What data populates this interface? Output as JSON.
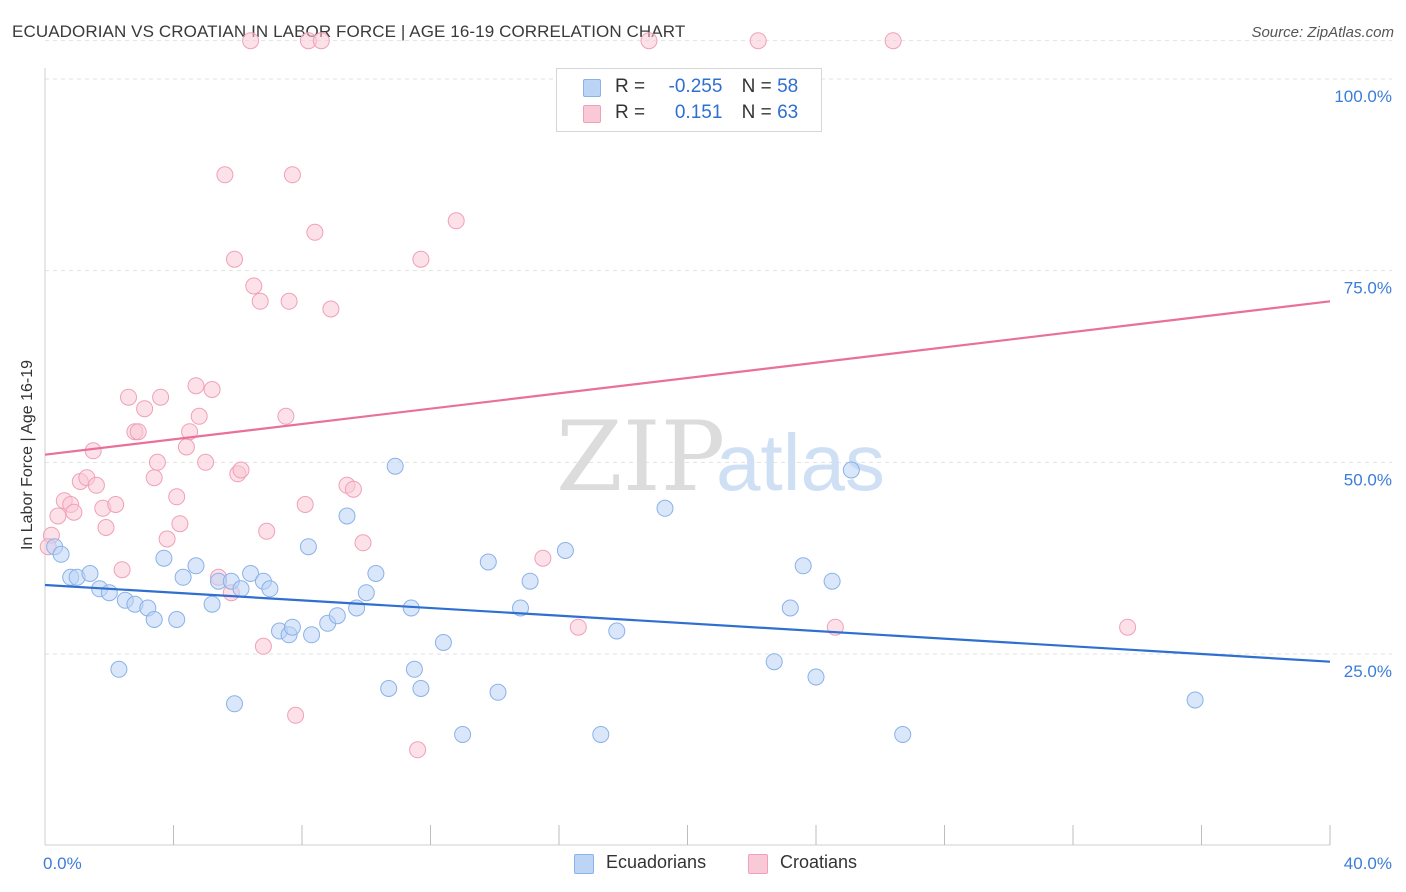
{
  "title": "ECUADORIAN VS CROATIAN IN LABOR FORCE | AGE 16-19 CORRELATION CHART",
  "source": "Source: ZipAtlas.com",
  "watermark": {
    "zip": "ZIP",
    "atlas": "atlas"
  },
  "colors": {
    "blue_fill": "#bcd4f5",
    "blue_stroke": "#8ab2e8",
    "blue_line": "#2f6fd0",
    "pink_fill": "#f9c9d7",
    "pink_stroke": "#f0a0b8",
    "pink_line": "#e8709a",
    "axis_text": "#3b7dd8"
  },
  "legend": {
    "rows": [
      {
        "r_label": "R =",
        "r_value": "-0.255",
        "n_label": "N =",
        "n_value": "58"
      },
      {
        "r_label": "R =",
        "r_value": "0.151",
        "n_label": "N =",
        "n_value": "63"
      }
    ]
  },
  "bottom_legend": {
    "items": [
      "Ecuadorians",
      "Croatians"
    ]
  },
  "chart_data": {
    "type": "scatter",
    "title": "ECUADORIAN VS CROATIAN IN LABOR FORCE | AGE 16-19 CORRELATION CHART",
    "ylabel": "In Labor Force | Age 16-19",
    "xlabel": "",
    "xlim": [
      0,
      40
    ],
    "ylim": [
      0,
      105
    ],
    "x_ticks": [
      {
        "value": 0,
        "label": "0.0%"
      },
      {
        "value": 40,
        "label": "40.0%"
      }
    ],
    "y_ticks": [
      {
        "value": 25,
        "label": "25.0%"
      },
      {
        "value": 50,
        "label": "50.0%"
      },
      {
        "value": 75,
        "label": "75.0%"
      },
      {
        "value": 100,
        "label": "100.0%"
      }
    ],
    "grid": true,
    "series": [
      {
        "name": "Ecuadorians",
        "color": "#8ab2e8",
        "trend": {
          "x": [
            0,
            40
          ],
          "y": [
            34,
            24
          ]
        },
        "points": [
          [
            0.3,
            39
          ],
          [
            0.5,
            38
          ],
          [
            0.8,
            35
          ],
          [
            1.0,
            35
          ],
          [
            1.4,
            35.5
          ],
          [
            1.7,
            33.5
          ],
          [
            2.0,
            33
          ],
          [
            2.3,
            23
          ],
          [
            2.5,
            32
          ],
          [
            2.8,
            31.5
          ],
          [
            3.2,
            31
          ],
          [
            3.4,
            29.5
          ],
          [
            3.7,
            37.5
          ],
          [
            4.1,
            29.5
          ],
          [
            4.3,
            35
          ],
          [
            4.7,
            36.5
          ],
          [
            5.2,
            31.5
          ],
          [
            5.4,
            34.5
          ],
          [
            5.8,
            34.5
          ],
          [
            5.9,
            18.5
          ],
          [
            6.1,
            33.5
          ],
          [
            6.4,
            35.5
          ],
          [
            6.8,
            34.5
          ],
          [
            7.0,
            33.5
          ],
          [
            7.3,
            28
          ],
          [
            7.6,
            27.5
          ],
          [
            7.7,
            28.5
          ],
          [
            8.2,
            39
          ],
          [
            8.3,
            27.5
          ],
          [
            8.8,
            29
          ],
          [
            9.1,
            30
          ],
          [
            9.4,
            43
          ],
          [
            9.7,
            31
          ],
          [
            10.0,
            33
          ],
          [
            10.3,
            35.5
          ],
          [
            10.7,
            20.5
          ],
          [
            10.9,
            49.5
          ],
          [
            11.4,
            31
          ],
          [
            11.5,
            23
          ],
          [
            11.7,
            20.5
          ],
          [
            12.4,
            26.5
          ],
          [
            13.0,
            14.5
          ],
          [
            13.8,
            37
          ],
          [
            14.1,
            20
          ],
          [
            14.8,
            31
          ],
          [
            15.1,
            34.5
          ],
          [
            16.2,
            38.5
          ],
          [
            17.3,
            14.5
          ],
          [
            17.8,
            28
          ],
          [
            19.3,
            44
          ],
          [
            22.7,
            24
          ],
          [
            23.2,
            31
          ],
          [
            23.6,
            36.5
          ],
          [
            24.0,
            22
          ],
          [
            24.5,
            34.5
          ],
          [
            25.1,
            49
          ],
          [
            26.7,
            14.5
          ],
          [
            35.8,
            19
          ]
        ]
      },
      {
        "name": "Croatians",
        "color": "#f0a0b8",
        "trend": {
          "x": [
            0,
            40
          ],
          "y": [
            51,
            71
          ]
        },
        "points": [
          [
            0.2,
            40.5
          ],
          [
            0.4,
            43
          ],
          [
            0.6,
            45
          ],
          [
            0.8,
            44.5
          ],
          [
            0.9,
            43.5
          ],
          [
            1.1,
            47.5
          ],
          [
            1.3,
            48
          ],
          [
            1.5,
            51.5
          ],
          [
            1.6,
            47
          ],
          [
            1.8,
            44
          ],
          [
            1.9,
            41.5
          ],
          [
            2.2,
            44.5
          ],
          [
            2.4,
            36
          ],
          [
            2.6,
            58.5
          ],
          [
            2.8,
            54
          ],
          [
            2.9,
            54
          ],
          [
            3.1,
            57
          ],
          [
            3.4,
            48
          ],
          [
            3.5,
            50
          ],
          [
            3.6,
            58.5
          ],
          [
            3.8,
            40
          ],
          [
            4.1,
            45.5
          ],
          [
            4.2,
            42
          ],
          [
            4.4,
            52
          ],
          [
            4.5,
            54
          ],
          [
            4.7,
            60
          ],
          [
            4.8,
            56
          ],
          [
            5.0,
            50
          ],
          [
            5.2,
            59.5
          ],
          [
            5.4,
            35
          ],
          [
            5.6,
            87.5
          ],
          [
            5.8,
            33
          ],
          [
            5.9,
            76.5
          ],
          [
            6.0,
            48.5
          ],
          [
            6.1,
            49
          ],
          [
            6.4,
            105
          ],
          [
            6.5,
            73
          ],
          [
            6.7,
            71
          ],
          [
            6.8,
            26
          ],
          [
            6.9,
            41
          ],
          [
            7.5,
            56
          ],
          [
            7.6,
            71
          ],
          [
            7.7,
            87.5
          ],
          [
            7.8,
            17
          ],
          [
            8.1,
            44.5
          ],
          [
            8.2,
            105
          ],
          [
            8.4,
            80
          ],
          [
            8.6,
            105
          ],
          [
            8.9,
            70
          ],
          [
            9.4,
            47
          ],
          [
            9.6,
            46.5
          ],
          [
            9.9,
            39.5
          ],
          [
            11.6,
            12.5
          ],
          [
            11.7,
            76.5
          ],
          [
            12.8,
            81.5
          ],
          [
            15.5,
            37.5
          ],
          [
            16.6,
            28.5
          ],
          [
            18.8,
            105
          ],
          [
            22.2,
            105
          ],
          [
            24.6,
            28.5
          ],
          [
            26.4,
            105
          ],
          [
            33.7,
            28.5
          ],
          [
            0.1,
            39
          ]
        ]
      }
    ]
  }
}
